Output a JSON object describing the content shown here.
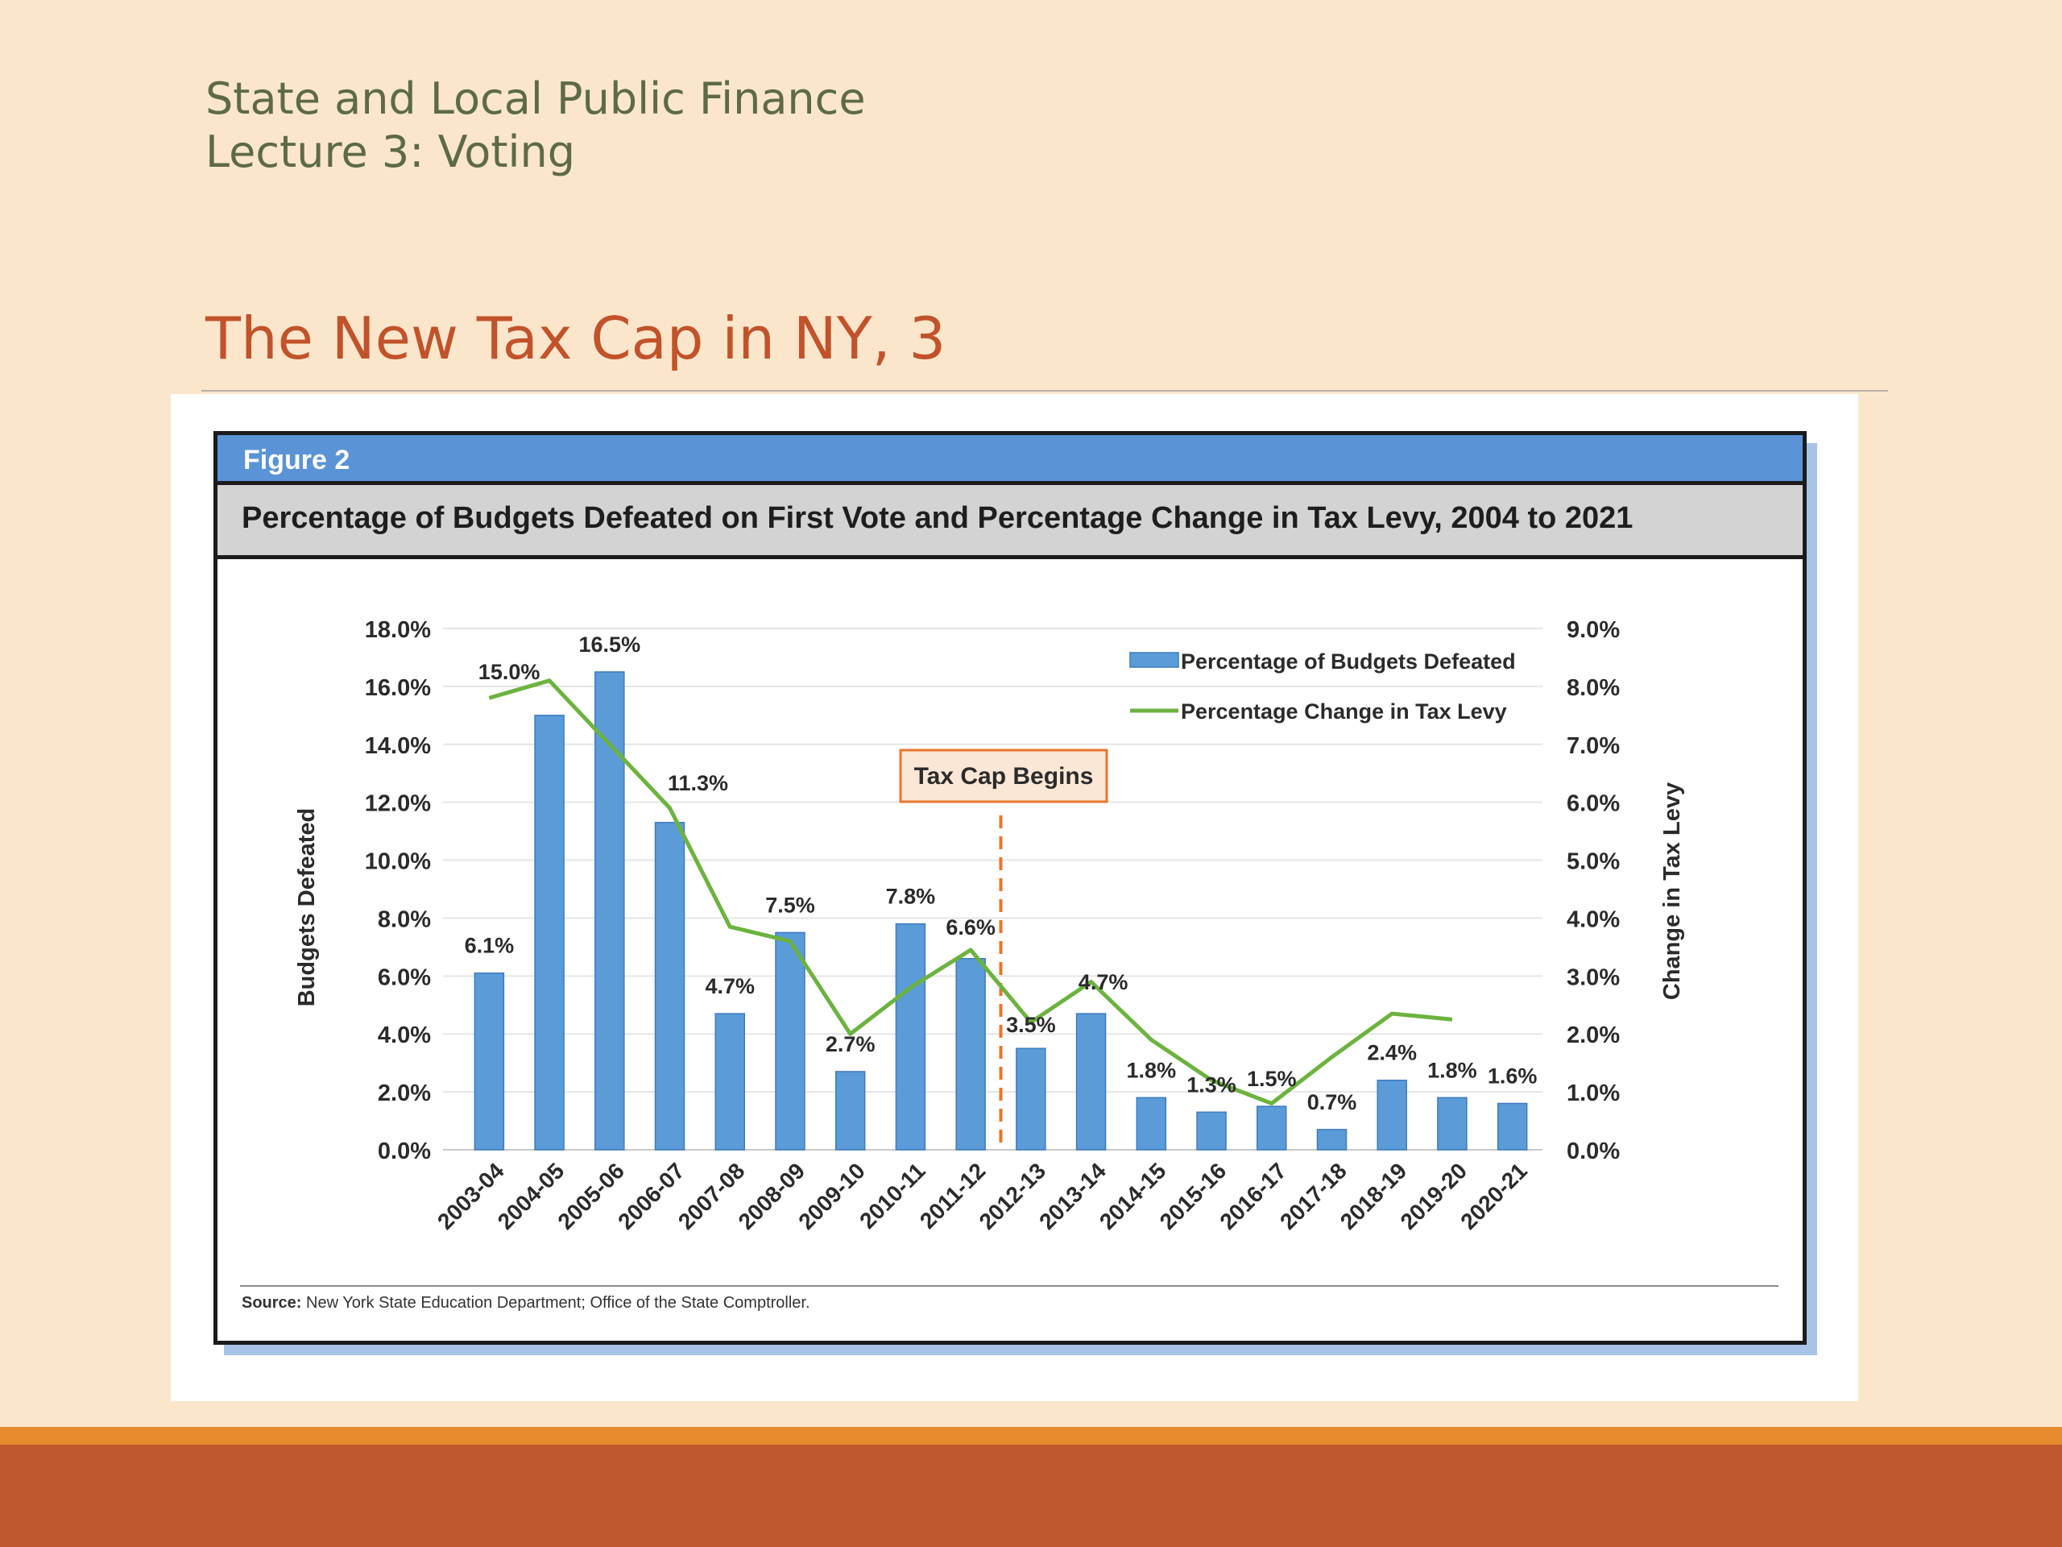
{
  "slide": {
    "course_line1": "State and Local Public Finance",
    "course_line2": "Lecture 3:  Voting",
    "title": "The New Tax Cap in NY, 3"
  },
  "figure": {
    "label": "Figure 2",
    "title": "Percentage of Budgets Defeated on First Vote and Percentage Change in Tax Levy, 2004 to 2021",
    "source_prefix": "Source:",
    "source_text": " New York State Education Department; Office of the State Comptroller."
  },
  "colors": {
    "bar": "#5a9bd8",
    "line": "#6cb33f",
    "annotation": "#e8762c"
  },
  "chart_data": {
    "type": "bar",
    "categories": [
      "2003-04",
      "2004-05",
      "2005-06",
      "2006-07",
      "2007-08",
      "2008-09",
      "2009-10",
      "2010-11",
      "2011-12",
      "2012-13",
      "2013-14",
      "2014-15",
      "2015-16",
      "2016-17",
      "2017-18",
      "2018-19",
      "2019-20",
      "2020-21"
    ],
    "series": [
      {
        "name": "Percentage of Budgets Defeated",
        "axis": "left",
        "type": "bar",
        "values": [
          6.1,
          15.0,
          16.5,
          11.3,
          4.7,
          7.5,
          2.7,
          7.8,
          6.6,
          3.5,
          4.7,
          1.8,
          1.3,
          1.5,
          0.7,
          2.4,
          1.8,
          1.6
        ],
        "labels": [
          "6.1%",
          "15.0%",
          "16.5%",
          "11.3%",
          "4.7%",
          "7.5%",
          "2.7%",
          "7.8%",
          "6.6%",
          "3.5%",
          "4.7%",
          "1.8%",
          "1.3%",
          "1.5%",
          "0.7%",
          "2.4%",
          "1.8%",
          "1.6%"
        ]
      },
      {
        "name": "Percentage Change in Tax Levy",
        "axis": "right",
        "type": "line",
        "values": [
          7.8,
          8.1,
          7.0,
          5.9,
          3.85,
          3.6,
          2.0,
          2.8,
          3.45,
          2.2,
          2.9,
          1.9,
          1.2,
          0.8,
          1.6,
          2.35,
          2.25,
          null
        ]
      }
    ],
    "ylabel": "Budgets Defeated",
    "y2label": "Change in Tax Levy",
    "ylim": [
      0,
      18
    ],
    "y2lim": [
      0,
      9
    ],
    "yticks": [
      "0.0%",
      "2.0%",
      "4.0%",
      "6.0%",
      "8.0%",
      "10.0%",
      "12.0%",
      "14.0%",
      "16.0%",
      "18.0%"
    ],
    "y2ticks": [
      "0.0%",
      "1.0%",
      "2.0%",
      "3.0%",
      "4.0%",
      "5.0%",
      "6.0%",
      "7.0%",
      "8.0%",
      "9.0%"
    ],
    "annotation": {
      "text": "Tax Cap Begins",
      "between": [
        "2011-12",
        "2012-13"
      ]
    },
    "legend": "top-right",
    "grid": true
  }
}
